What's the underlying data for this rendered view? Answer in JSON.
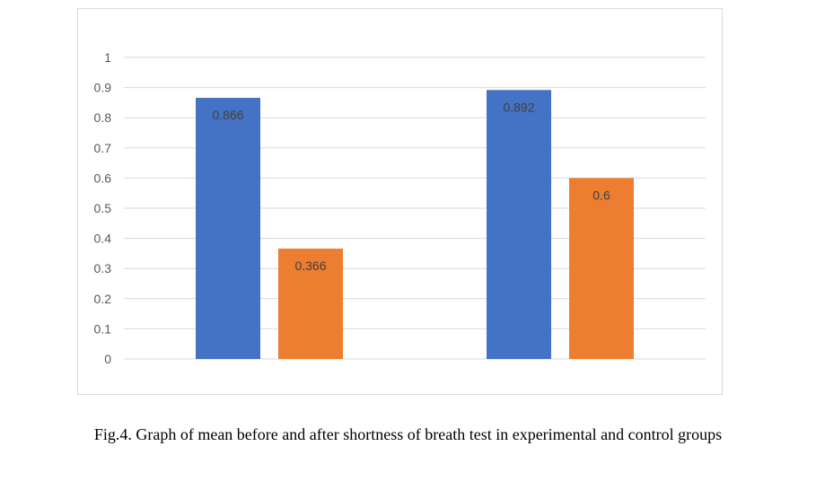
{
  "caption": "Fig.4. Graph of mean before and after shortness of breath test in experimental and control groups",
  "chart_data": {
    "type": "bar",
    "categories": [
      "",
      ""
    ],
    "series": [
      {
        "values": [
          0.866,
          0.892
        ],
        "color": "#4472c4"
      },
      {
        "values": [
          0.366,
          0.6
        ],
        "color": "#ed7d31"
      }
    ],
    "data_labels": [
      [
        "0.866",
        "0.892"
      ],
      [
        "0.366",
        "0.6"
      ]
    ],
    "title": "",
    "xlabel": "",
    "ylabel": "",
    "ylim": [
      0,
      1
    ],
    "yticks": [
      "0",
      "0.1",
      "0.2",
      "0.3",
      "0.4",
      "0.5",
      "0.6",
      "0.7",
      "0.8",
      "0.9",
      "1"
    ],
    "grid": true,
    "legend": "none"
  }
}
